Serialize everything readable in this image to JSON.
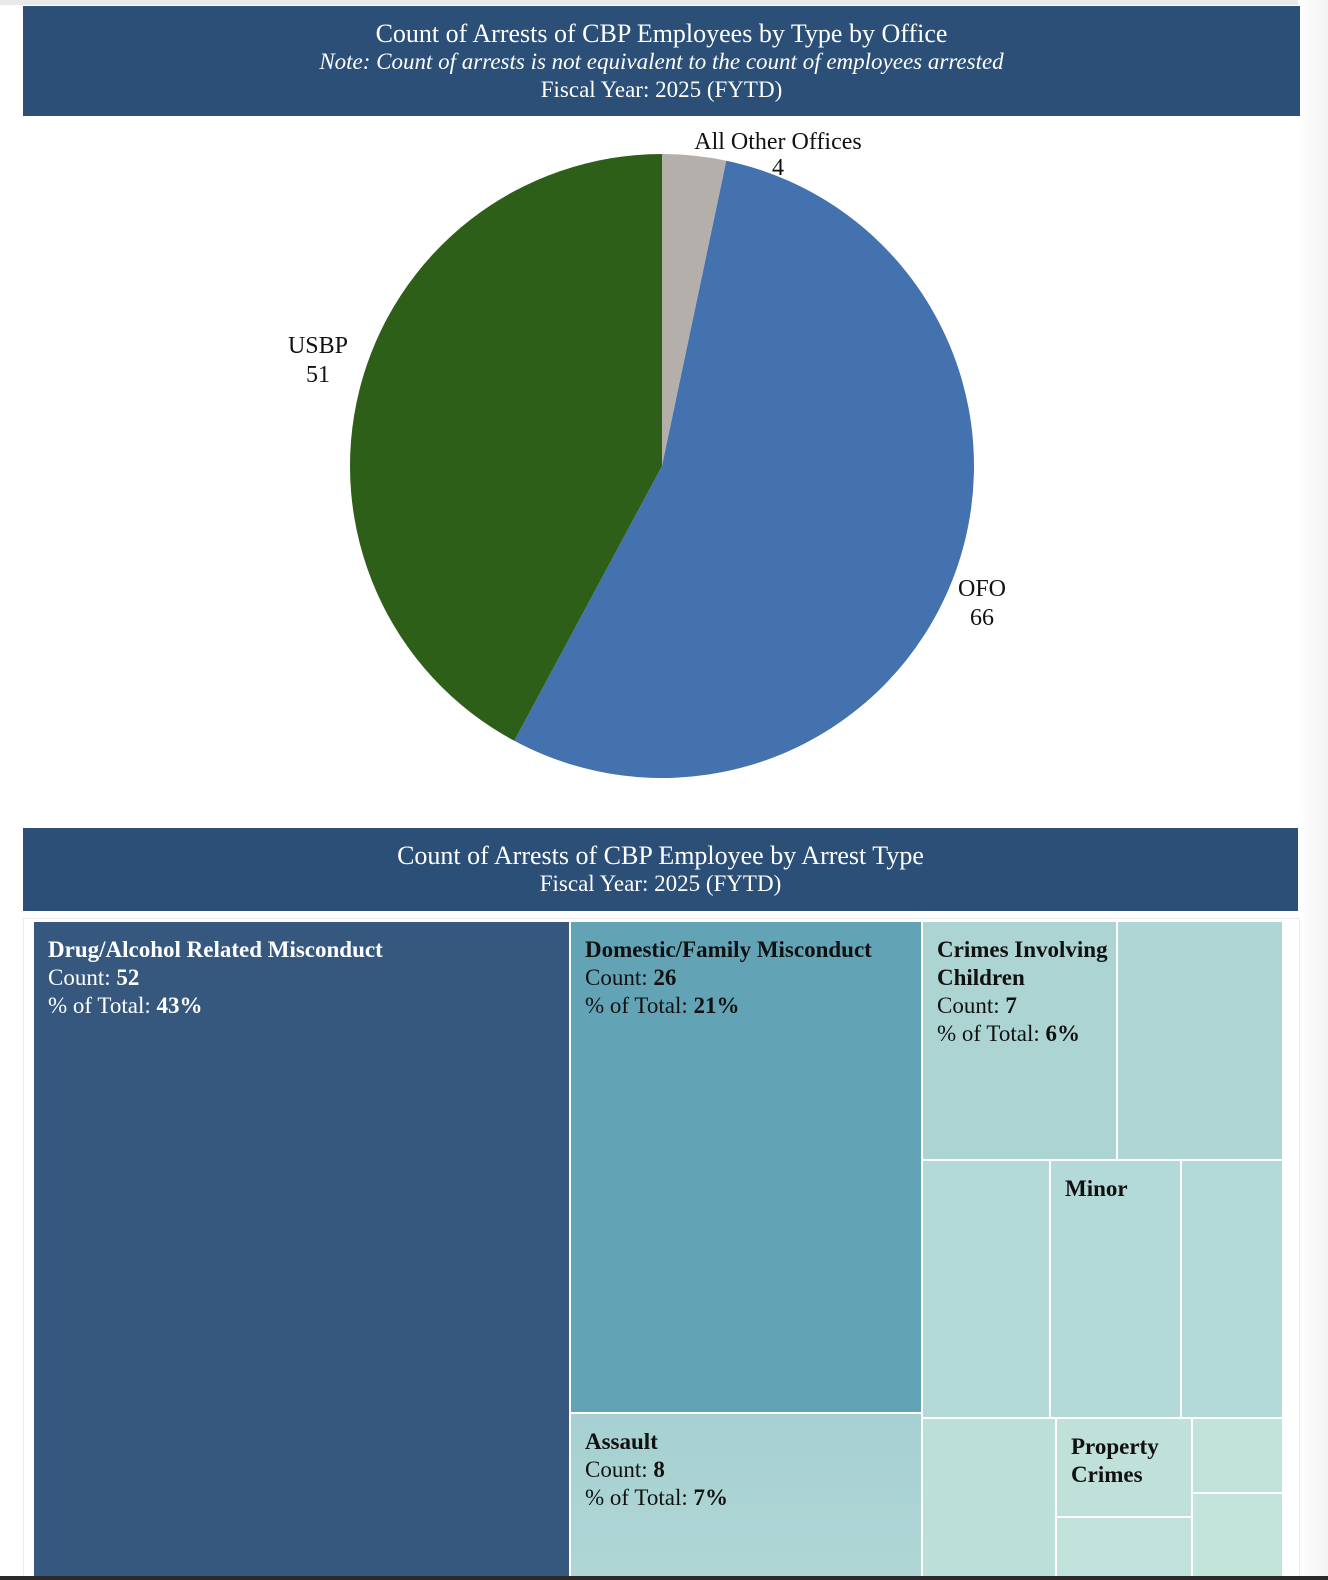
{
  "pie_section": {
    "title": "Count of  Arrests of CBP Employees by Type by Office",
    "note": "Note: Count of arrests is not equivalent to the count of employees arrested",
    "fiscal_year": "Fiscal Year: 2025 (FYTD)"
  },
  "treemap_section": {
    "title": "Count of Arrests of CBP Employee by Arrest Type",
    "fiscal_year": "Fiscal Year: 2025 (FYTD)",
    "count_prefix": "Count: ",
    "pct_prefix": "% of Total: ",
    "tiles": [
      {
        "name": "Drug/Alcohol Related Misconduct",
        "count": "52",
        "pct": "43%",
        "color": "#36587e"
      },
      {
        "name": "Domestic/Family Misconduct",
        "count": "26",
        "pct": "21%",
        "color": "#63a3b6"
      },
      {
        "name": "Crimes Involving Children",
        "count": "7",
        "pct": "6%",
        "color": "#acd4d3"
      },
      {
        "name": "Assault",
        "count": "8",
        "pct": "7%",
        "color": "#a6d0d1"
      },
      {
        "name": "Minor",
        "color": "#b3d9d8"
      },
      {
        "name": "Property Crimes",
        "color": "#bfe1d9"
      }
    ]
  },
  "chart_data": [
    {
      "type": "pie",
      "title": "Count of  Arrests of CBP Employees by Type by Office",
      "subtitle": "Note: Count of arrests is not equivalent to the count of employees arrested",
      "caption": "Fiscal Year: 2025 (FYTD)",
      "categories": [
        "All Other Offices",
        "OFO",
        "USBP"
      ],
      "values": [
        4,
        66,
        51
      ],
      "colors": [
        "#b5afab",
        "#4372af",
        "#2d5f19"
      ]
    },
    {
      "type": "treemap",
      "title": "Count of Arrests of CBP Employee by Arrest Type",
      "caption": "Fiscal Year: 2025 (FYTD)",
      "categories": [
        "Drug/Alcohol Related Misconduct",
        "Domestic/Family Misconduct",
        "Assault",
        "Crimes Involving Children"
      ],
      "values": [
        52,
        26,
        8,
        7
      ],
      "percent_of_total": [
        43,
        21,
        7,
        6
      ],
      "unlabeled_values_shown": [
        "Minor",
        "Property Crimes"
      ]
    }
  ]
}
